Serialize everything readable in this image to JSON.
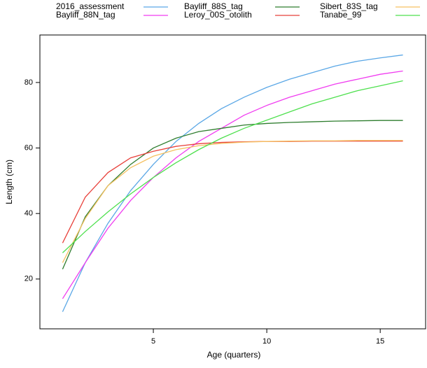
{
  "chart_data": {
    "type": "line",
    "x_label": "Age (quarters)",
    "y_label": "Length (cm)",
    "x": [
      1,
      2,
      3,
      4,
      5,
      6,
      7,
      8,
      9,
      10,
      11,
      12,
      13,
      14,
      15,
      16
    ],
    "xlim": [
      0,
      17
    ],
    "xticks": [
      5,
      10,
      15
    ],
    "ylim": [
      4.8,
      94.5
    ],
    "yticks": [
      20,
      40,
      60,
      80
    ],
    "series": [
      {
        "name": "2016_assessment",
        "color": "#5aa7e6",
        "values": [
          10,
          25,
          37,
          47,
          55,
          62,
          67.5,
          72,
          75.5,
          78.5,
          81,
          83,
          85,
          86.5,
          87.5,
          88.4
        ]
      },
      {
        "name": "Bayliff_88N_tag",
        "color": "#f03cf0",
        "values": [
          14,
          25,
          35.5,
          44,
          51,
          57,
          62,
          66,
          70,
          73,
          75.5,
          77.5,
          79.5,
          81,
          82.5,
          83.5
        ]
      },
      {
        "name": "Bayliff_88S_tag",
        "color": "#2e7d2e",
        "values": [
          23,
          39,
          48.5,
          55,
          60,
          63,
          65,
          66,
          67,
          67.5,
          67.8,
          68,
          68.2,
          68.3,
          68.4,
          68.4
        ]
      },
      {
        "name": "Leroy_00S_otolith",
        "color": "#e8403a",
        "values": [
          31,
          45,
          52.5,
          57,
          59,
          60.5,
          61.3,
          61.7,
          61.9,
          62,
          62,
          62.1,
          62.1,
          62.1,
          62.1,
          62.1
        ]
      },
      {
        "name": "Sibert_83S_tag",
        "color": "#f5c060",
        "values": [
          25,
          38.5,
          48.5,
          54,
          57.5,
          59.5,
          60.7,
          61.4,
          61.8,
          62,
          62.1,
          62.2,
          62.2,
          62.3,
          62.3,
          62.3
        ]
      },
      {
        "name": "Tanabe_99",
        "color": "#4ee04e",
        "values": [
          28,
          34.5,
          40.5,
          46,
          51,
          55.5,
          59.5,
          63,
          66,
          68.5,
          71,
          73.5,
          75.5,
          77.5,
          79,
          80.5
        ]
      }
    ]
  }
}
